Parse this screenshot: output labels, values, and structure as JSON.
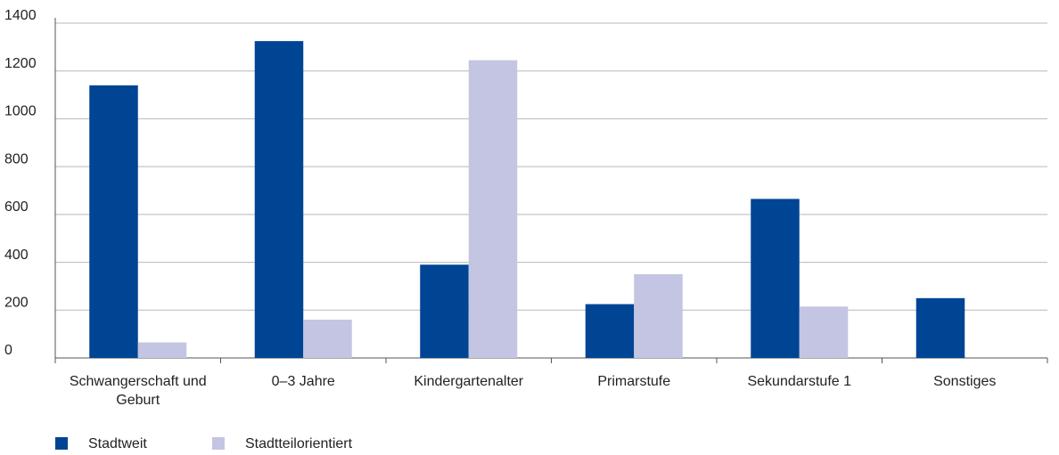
{
  "chart_data": {
    "type": "bar",
    "categories": [
      "Schwangerschaft und Geburt",
      "0–3 Jahre",
      "Kindergartenalter",
      "Primarstufe",
      "Sekundarstufe 1",
      "Sonstiges"
    ],
    "series": [
      {
        "name": "Stadtweit",
        "color": "#004494",
        "values": [
          1140,
          1325,
          390,
          225,
          665,
          250
        ]
      },
      {
        "name": "Stadtteilorientiert",
        "color": "#c3c5e2",
        "values": [
          65,
          160,
          1245,
          350,
          215,
          0
        ]
      }
    ],
    "ylim": [
      0,
      1400
    ],
    "yticks": [
      0,
      200,
      400,
      600,
      800,
      1000,
      1200,
      1400
    ],
    "grid": true,
    "legend": "bottom"
  }
}
